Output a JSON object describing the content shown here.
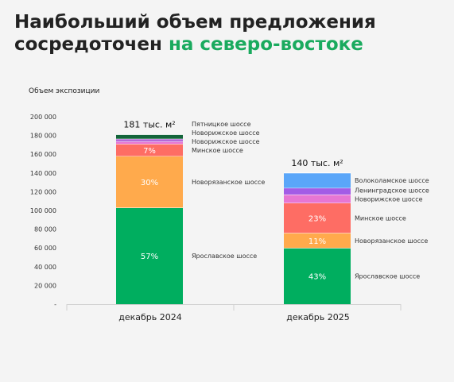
{
  "title": {
    "line1": "Наибольший объем предложения",
    "line2_plain": "сосредоточен ",
    "line2_accent": "на северо-востоке"
  },
  "chart_data": {
    "type": "bar",
    "stacked": true,
    "ylabel": "Объем экспозиции",
    "ylim": [
      0,
      200000
    ],
    "yticks": [
      "-",
      "20 000",
      "40 000",
      "60 000",
      "80 000",
      "100 000",
      "120 000",
      "140 000",
      "160 000",
      "180 000",
      "200 000"
    ],
    "categories": [
      "декабрь 2024",
      "декабрь 2025"
    ],
    "bars": [
      {
        "category": "декабрь 2024",
        "total_label": "181 тыс. м²",
        "segments": [
          {
            "name": "Ярославское шоссе",
            "value": 103000,
            "pct": "57%",
            "color": "#00ae5f"
          },
          {
            "name": "Новорязанское шоссе",
            "value": 55000,
            "pct": "30%",
            "color": "#ffaa4c"
          },
          {
            "name": "Минское шоссе",
            "value": 13000,
            "pct": "7%",
            "color": "#fe6d64"
          },
          {
            "name": "Новорижское шоссе",
            "value": 2500,
            "pct": "",
            "color": "#e776d3"
          },
          {
            "name": "Новорижское шоссе",
            "value": 3000,
            "pct": "",
            "color": "#b56ad8"
          },
          {
            "name": "Пятницкое шоссе",
            "value": 4500,
            "pct": "",
            "color": "#13643a"
          }
        ]
      },
      {
        "category": "декабрь 2025",
        "total_label": "140 тыс. м²",
        "segments": [
          {
            "name": "Ярославское шоссе",
            "value": 60000,
            "pct": "43%",
            "color": "#00ae5f"
          },
          {
            "name": "Новорязанское шоссе",
            "value": 16000,
            "pct": "11%",
            "color": "#ffaa4c"
          },
          {
            "name": "Минское шоссе",
            "value": 32000,
            "pct": "23%",
            "color": "#fe6d64"
          },
          {
            "name": "Новорижское шоссе",
            "value": 9000,
            "pct": "",
            "color": "#e776d3"
          },
          {
            "name": "Ленинградское шоссе",
            "value": 7000,
            "pct": "",
            "color": "#a35ce6"
          },
          {
            "name": "Волоколамское шоссе",
            "value": 16000,
            "pct": "",
            "color": "#5aa6f9"
          }
        ]
      }
    ]
  }
}
